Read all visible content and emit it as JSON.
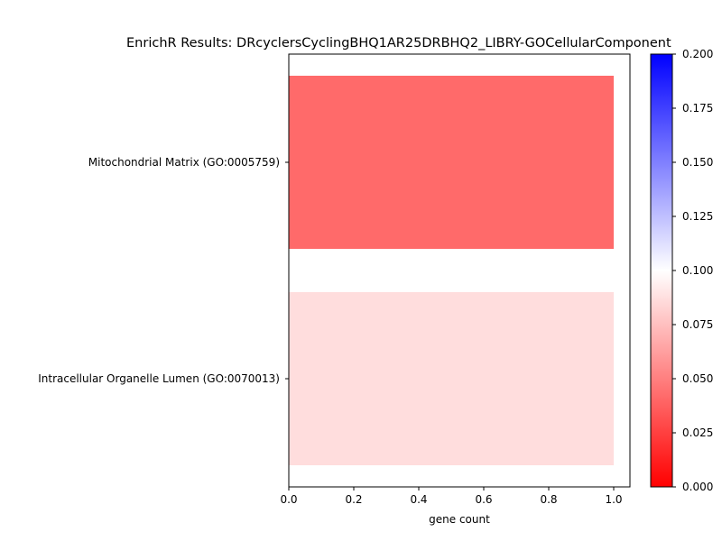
{
  "chart_data": {
    "type": "bar",
    "orientation": "horizontal",
    "title": "EnrichR Results: DRcyclersCyclingBHQ1AR25DRBHQ2_LIBRY-GOCellularComponent",
    "xlabel": "gene count",
    "ylabel": "",
    "categories": [
      "Mitochondrial Matrix (GO:0005759)",
      "Intracellular Organelle Lumen (GO:0070013)"
    ],
    "values": [
      1,
      1
    ],
    "color_values": [
      0.022,
      0.082
    ],
    "xlim": [
      0,
      1.05
    ],
    "x_ticks": [
      "0.0",
      "0.2",
      "0.4",
      "0.6",
      "0.8",
      "1.0"
    ],
    "colorbar": {
      "colormap": "bwr",
      "range": [
        0,
        0.2
      ],
      "ticks": [
        "0.000",
        "0.025",
        "0.050",
        "0.075",
        "0.100",
        "0.125",
        "0.150",
        "0.175",
        "0.200"
      ]
    },
    "grid": false,
    "legend": "none"
  }
}
